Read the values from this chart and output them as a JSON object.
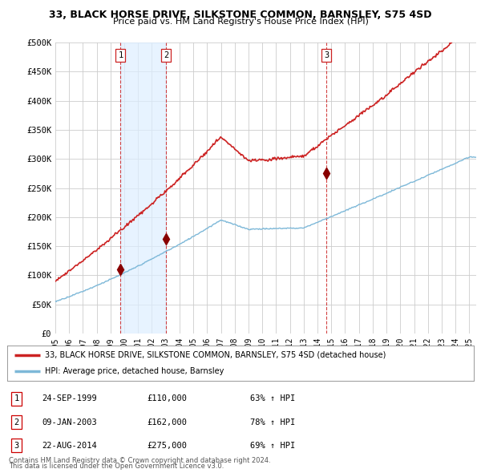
{
  "title": "33, BLACK HORSE DRIVE, SILKSTONE COMMON, BARNSLEY, S75 4SD",
  "subtitle": "Price paid vs. HM Land Registry's House Price Index (HPI)",
  "ylim": [
    0,
    500000
  ],
  "yticks": [
    0,
    50000,
    100000,
    150000,
    200000,
    250000,
    300000,
    350000,
    400000,
    450000,
    500000
  ],
  "ytick_labels": [
    "£0",
    "£50K",
    "£100K",
    "£150K",
    "£200K",
    "£250K",
    "£300K",
    "£350K",
    "£400K",
    "£450K",
    "£500K"
  ],
  "xlim_start": 1995.0,
  "xlim_end": 2025.5,
  "sale_dates_num": [
    1999.73,
    2003.03,
    2014.64
  ],
  "sale_prices": [
    110000,
    162000,
    275000
  ],
  "sale_labels": [
    "1",
    "2",
    "3"
  ],
  "hpi_line_color": "#7db8d8",
  "price_line_color": "#cc2222",
  "sale_marker_color": "#880000",
  "sale_vline_color": "#cc2222",
  "shade_color": "#ddeeff",
  "background_color": "#ffffff",
  "grid_color": "#cccccc",
  "legend_entries": [
    "33, BLACK HORSE DRIVE, SILKSTONE COMMON, BARNSLEY, S75 4SD (detached house)",
    "HPI: Average price, detached house, Barnsley"
  ],
  "table_rows": [
    [
      "1",
      "24-SEP-1999",
      "£110,000",
      "63% ↑ HPI"
    ],
    [
      "2",
      "09-JAN-2003",
      "£162,000",
      "78% ↑ HPI"
    ],
    [
      "3",
      "22-AUG-2014",
      "£275,000",
      "69% ↑ HPI"
    ]
  ],
  "footnote1": "Contains HM Land Registry data © Crown copyright and database right 2024.",
  "footnote2": "This data is licensed under the Open Government Licence v3.0."
}
